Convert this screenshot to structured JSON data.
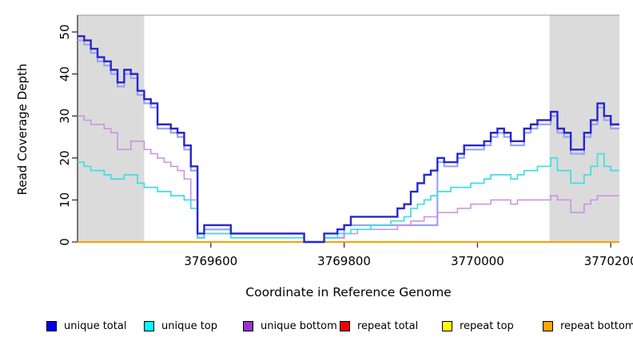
{
  "chart_data": {
    "type": "step-line",
    "title": "",
    "xlabel": "Coordinate in Reference Genome",
    "ylabel": "Read Coverage Depth",
    "xlim": [
      3769400,
      3770213
    ],
    "ylim": [
      0,
      54
    ],
    "x_ticks": [
      3769600,
      3769800,
      3770000,
      3770200
    ],
    "y_ticks": [
      0,
      10,
      20,
      30,
      40,
      50
    ],
    "grid": "off",
    "shaded_regions": [
      {
        "x0": 3769400,
        "x1": 3769500,
        "color": "#dbdbdb"
      },
      {
        "x0": 3770108,
        "x1": 3770213,
        "color": "#dbdbdb"
      }
    ],
    "x_start": 3769400,
    "x_step": 10,
    "series": [
      {
        "name": "repeat total",
        "color": "#ee0000",
        "width": 1.2,
        "x_start": 3769400,
        "x_step": 813,
        "values": [
          0,
          0
        ]
      },
      {
        "name": "repeat top",
        "color": "#ffff00",
        "width": 1.2,
        "x_start": 3769400,
        "x_step": 813,
        "values": [
          0,
          0
        ]
      },
      {
        "name": "repeat bottom",
        "color": "#ff9d00",
        "width": 2,
        "x_start": 3769400,
        "x_step": 813,
        "values": [
          0,
          0
        ]
      },
      {
        "name": "unique total (light trace)",
        "color": "#9aa5ec",
        "width": 2.2,
        "values": [
          48,
          47,
          45,
          43,
          42,
          40,
          37,
          40,
          39,
          35,
          33,
          32,
          27,
          27,
          26,
          25,
          22,
          17,
          1,
          3,
          3,
          3,
          3,
          2,
          2,
          2,
          2,
          2,
          2,
          2,
          2,
          2,
          2,
          2,
          0,
          0,
          0,
          1,
          1,
          1,
          4,
          4,
          4,
          4,
          4,
          4,
          4,
          4,
          4,
          4,
          4,
          4,
          4,
          4,
          19,
          18,
          18,
          20,
          22,
          22,
          22,
          23,
          25,
          26,
          25,
          23,
          23,
          26,
          27,
          28,
          28,
          30,
          26,
          25,
          21,
          21,
          25,
          28,
          32,
          29,
          27,
          27
        ]
      },
      {
        "name": "unique bottom",
        "color": "#c98fe3",
        "width": 1.5,
        "values": [
          30,
          29,
          28,
          28,
          27,
          26,
          22,
          22,
          24,
          24,
          22,
          21,
          20,
          19,
          18,
          17,
          15,
          10,
          1,
          2,
          2,
          2,
          2,
          1,
          1,
          1,
          1,
          1,
          1,
          1,
          1,
          1,
          1,
          1,
          0,
          0,
          0,
          1,
          1,
          1,
          2,
          2,
          3,
          3,
          3,
          3,
          3,
          3,
          4,
          4,
          5,
          5,
          6,
          6,
          7,
          7,
          7,
          8,
          8,
          9,
          9,
          9,
          10,
          10,
          10,
          9,
          10,
          10,
          10,
          10,
          10,
          11,
          10,
          10,
          7,
          7,
          9,
          10,
          11,
          11,
          11,
          11
        ]
      },
      {
        "name": "unique top",
        "color": "#3fdde4",
        "width": 1.7,
        "values": [
          19,
          18,
          17,
          17,
          16,
          15,
          15,
          16,
          16,
          14,
          13,
          13,
          12,
          12,
          11,
          11,
          10,
          8,
          1,
          2,
          2,
          2,
          2,
          1,
          1,
          1,
          1,
          1,
          1,
          1,
          1,
          1,
          1,
          1,
          0,
          0,
          0,
          1,
          1,
          2,
          2,
          3,
          3,
          3,
          4,
          4,
          4,
          5,
          5,
          6,
          8,
          9,
          10,
          11,
          12,
          12,
          13,
          13,
          13,
          14,
          14,
          15,
          16,
          16,
          16,
          15,
          16,
          17,
          17,
          18,
          18,
          20,
          17,
          17,
          14,
          14,
          16,
          18,
          21,
          18,
          17,
          17
        ]
      },
      {
        "name": "unique total",
        "color": "#2727ce",
        "width": 2.4,
        "values": [
          49,
          48,
          46,
          44,
          43,
          41,
          38,
          41,
          40,
          36,
          34,
          33,
          28,
          28,
          27,
          26,
          23,
          18,
          2,
          4,
          4,
          4,
          4,
          2,
          2,
          2,
          2,
          2,
          2,
          2,
          2,
          2,
          2,
          2,
          0,
          0,
          0,
          2,
          2,
          3,
          4,
          6,
          6,
          6,
          6,
          6,
          6,
          6,
          8,
          9,
          12,
          14,
          16,
          17,
          20,
          19,
          19,
          21,
          23,
          23,
          23,
          24,
          26,
          27,
          26,
          24,
          24,
          27,
          28,
          29,
          29,
          31,
          27,
          26,
          22,
          22,
          26,
          29,
          33,
          30,
          28,
          28
        ]
      }
    ],
    "legend": {
      "position": "bottom",
      "items": [
        {
          "label": "unique total",
          "color": "#0000ee"
        },
        {
          "label": "unique top",
          "color": "#00ffff"
        },
        {
          "label": "unique bottom",
          "color": "#9932cc"
        },
        {
          "label": "repeat total",
          "color": "#ee0000"
        },
        {
          "label": "repeat top",
          "color": "#ffff00"
        },
        {
          "label": "repeat bottom",
          "color": "#ffa500"
        }
      ]
    },
    "axis_color": "#333333",
    "top_border_color": "#999999"
  }
}
